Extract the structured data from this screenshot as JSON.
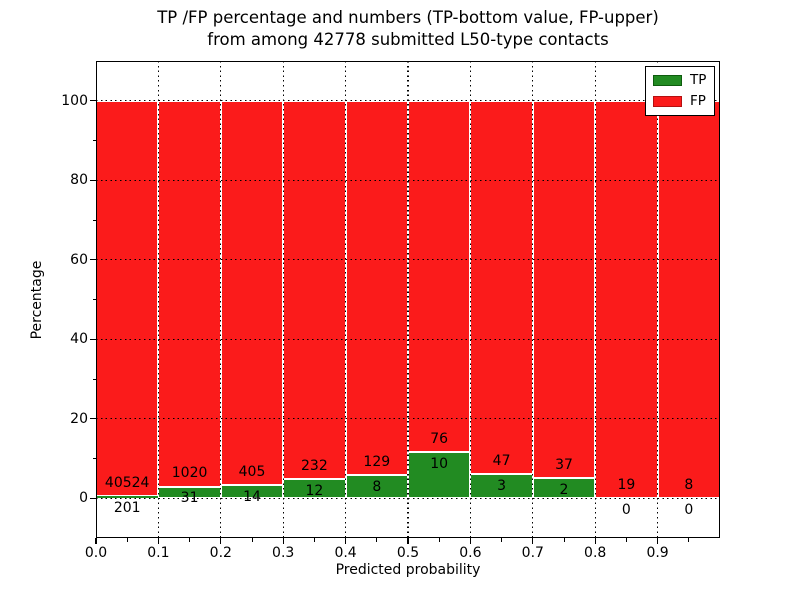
{
  "chart_data": {
    "type": "bar",
    "stacking": "percent",
    "title_line1": "TP /FP percentage and numbers (TP-bottom value, FP-upper)",
    "title_line2": "from among 42778 submitted L50-type contacts",
    "xlabel": "Predicted probability",
    "ylabel": "Percentage",
    "xlim": [
      0.0,
      1.0
    ],
    "ylim": [
      -10,
      110
    ],
    "bin_width": 0.1,
    "x_tick_labels": [
      "0.0",
      "0.1",
      "0.2",
      "0.3",
      "0.4",
      "0.5",
      "0.6",
      "0.7",
      "0.8",
      "0.9"
    ],
    "y_ticks": [
      0,
      20,
      40,
      60,
      80,
      100
    ],
    "grid": {
      "style": "dotted",
      "color": "#000000",
      "x_step": 0.1,
      "y_step": 20,
      "on_top": true
    },
    "categories": [
      "0.0-0.1",
      "0.1-0.2",
      "0.2-0.3",
      "0.3-0.4",
      "0.4-0.5",
      "0.5-0.6",
      "0.6-0.7",
      "0.7-0.8",
      "0.8-0.9",
      "0.9-1.0"
    ],
    "series": [
      {
        "name": "TP",
        "color": "#228b22",
        "edge": "#0e5c0e",
        "counts": [
          201,
          31,
          14,
          12,
          8,
          10,
          3,
          2,
          0,
          0
        ]
      },
      {
        "name": "FP",
        "color": "#fb1b1b",
        "edge": "#b51010",
        "counts": [
          40524,
          1020,
          405,
          232,
          129,
          76,
          47,
          37,
          19,
          8
        ]
      }
    ],
    "tp_percent_of_bin": [
      0.49,
      2.95,
      3.34,
      4.92,
      5.84,
      11.63,
      6.0,
      5.13,
      0.0,
      0.0
    ],
    "total_submitted": 42778,
    "bar_edge_color": "#ffffff",
    "legend": {
      "position": "upper-right",
      "entries": [
        "TP",
        "FP"
      ]
    }
  }
}
